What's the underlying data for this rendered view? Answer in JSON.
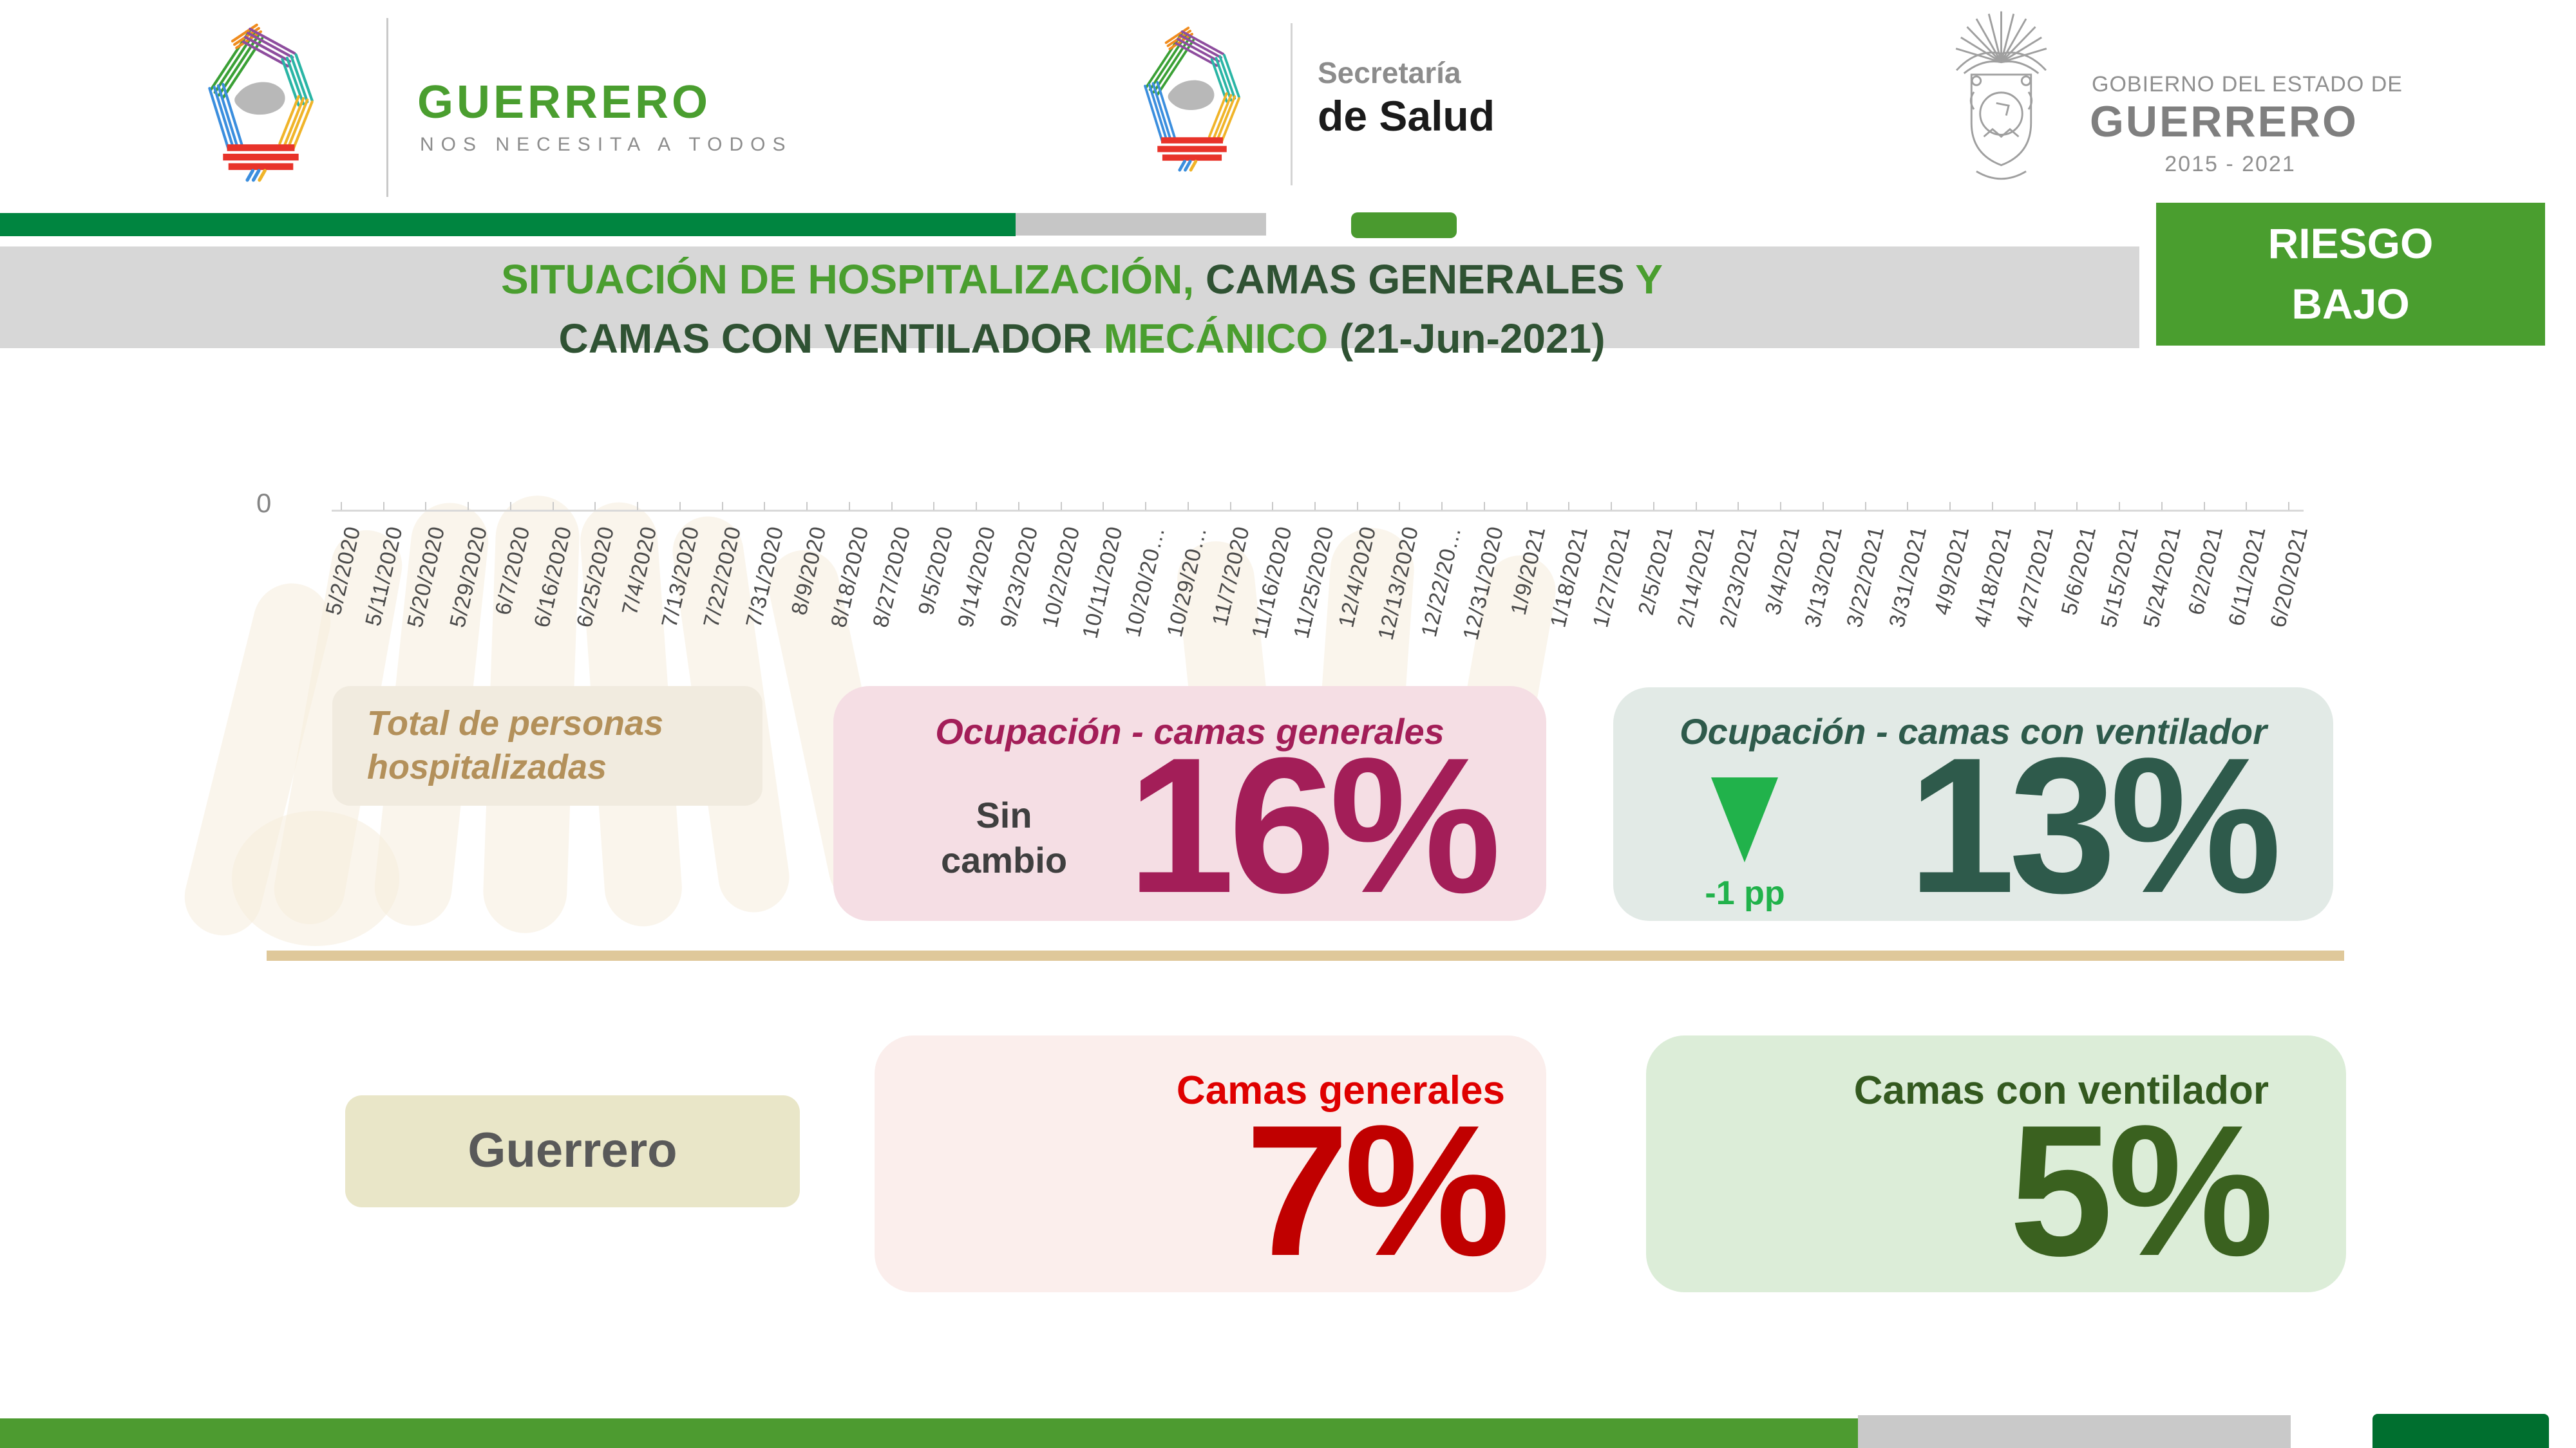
{
  "header": {
    "left": {
      "brand": "GUERRERO",
      "tagline": "NOS NECESITA A TODOS"
    },
    "center": {
      "dept_line1": "Secretaría",
      "dept_line2": "de Salud"
    },
    "right": {
      "gov_line1": "GOBIERNO DEL ESTADO DE",
      "gov_line2": "GUERRERO",
      "gov_line3": "2015 - 2021"
    }
  },
  "title_banner": {
    "l1_green": "SITUACIÓN DE HOSPITALIZACIÓN, ",
    "l1_dark": "CAMAS GENERALES ",
    "l1_green2": "Y",
    "l2_dark": "CAMAS CON VENTILADOR ",
    "l2_green": "MECÁNICO ",
    "l2_dark2": "(21-Jun-2021)"
  },
  "risk_badge": {
    "line1": "RIESGO",
    "line2": "BAJO"
  },
  "chart_data": {
    "type": "line",
    "title": "Situación de hospitalización, camas generales y camas con ventilador mecánico (21-Jun-2021)",
    "xlabel": "",
    "ylabel": "",
    "grid": false,
    "legend": [],
    "y_tick_labels_visible": [
      "0"
    ],
    "x_tick_labels": [
      "5/2/2020",
      "5/11/2020",
      "5/20/2020",
      "5/29/2020",
      "6/7/2020",
      "6/16/2020",
      "6/25/2020",
      "7/4/2020",
      "7/13/2020",
      "7/22/2020",
      "7/31/2020",
      "8/9/2020",
      "8/18/2020",
      "8/27/2020",
      "9/5/2020",
      "9/14/2020",
      "9/23/2020",
      "10/2/2020",
      "10/11/2020",
      "10/20/20…",
      "10/29/20…",
      "11/7/2020",
      "11/16/2020",
      "11/25/2020",
      "12/4/2020",
      "12/13/2020",
      "12/22/20…",
      "12/31/2020",
      "1/9/2021",
      "1/18/2021",
      "1/27/2021",
      "2/5/2021",
      "2/14/2021",
      "2/23/2021",
      "3/4/2021",
      "3/13/2021",
      "3/22/2021",
      "3/31/2021",
      "4/9/2021",
      "4/18/2021",
      "4/27/2021",
      "5/6/2021",
      "5/15/2021",
      "5/24/2021",
      "6/2/2021",
      "6/11/2021",
      "6/20/2021"
    ],
    "series": []
  },
  "kpi_row1": {
    "total_label_line1": "Total de personas",
    "total_label_line2": "hospitalizadas",
    "general": {
      "title": "Ocupación - camas generales",
      "change_line1": "Sin",
      "change_line2": "cambio",
      "value": "16%"
    },
    "ventilator": {
      "title": "Ocupación - camas con ventilador",
      "trend_icon": "down-triangle",
      "change": "-1 pp",
      "value": "13%"
    }
  },
  "kpi_row2": {
    "region": "Guerrero",
    "general": {
      "label": "Camas generales",
      "value": "7%"
    },
    "ventilator": {
      "label": "Camas con ventilador",
      "value": "5%"
    }
  },
  "colors": {
    "brand_green": "#4a9e2f",
    "top_bar_green": "#008540",
    "title_dark_green": "#2f5233",
    "maroon": "#a31e58",
    "pink_card": "#f5dee4",
    "mint_card": "#e2eae6",
    "teal_green_dark": "#2e5a4b",
    "bright_green": "#21b24b",
    "beige_card": "#f1ebdf",
    "tan_text": "#b3905a",
    "khaki_card": "#e9e6c8",
    "light_pink_card": "#fbeeec",
    "red_title": "#df0000",
    "red_value": "#c00000",
    "light_green_card": "#dcedd8",
    "dark_green_value": "#3a611f",
    "divider_tan": "#dfc89a",
    "bottom_green": "#4d9b30",
    "bottom_dark_green": "#006f2f"
  }
}
